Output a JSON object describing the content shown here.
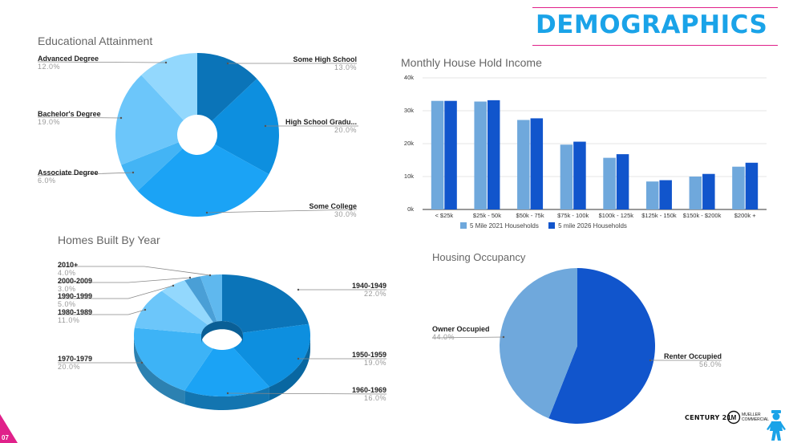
{
  "header": {
    "title": "DEMOGRAPHICS"
  },
  "page_number": "07",
  "logos": {
    "century21": "CENTURY 21",
    "mueller": "MUELLER COMMERCIAL"
  },
  "colors": {
    "accent_pink": "#e0218a",
    "accent_blue": "#1aa3e8",
    "series_2021": "#6fa8dc",
    "series_2026": "#1155cc"
  },
  "chart_data": [
    {
      "id": "education",
      "type": "pie",
      "title": "Educational Attainment",
      "donut": true,
      "slices": [
        {
          "label": "Some High School",
          "value": 13.0,
          "display": "13.0%",
          "color": "#0b74b8"
        },
        {
          "label": "High School Gradu...",
          "value": 20.0,
          "display": "20.0%",
          "color": "#0d8fdf"
        },
        {
          "label": "Some College",
          "value": 30.0,
          "display": "30.0%",
          "color": "#1ba3f5"
        },
        {
          "label": "Associate Degree",
          "value": 6.0,
          "display": "6.0%",
          "color": "#43b4f5"
        },
        {
          "label": "Bachelor's Degree",
          "value": 19.0,
          "display": "19.0%",
          "color": "#6cc6fa"
        },
        {
          "label": "Advanced Degree",
          "value": 12.0,
          "display": "12.0%",
          "color": "#93d8fd"
        }
      ]
    },
    {
      "id": "income",
      "type": "bar",
      "title": "Monthly House Hold Income",
      "categories": [
        "< $25k",
        "$25k - 50k",
        "$50k - 75k",
        "$75k - 100k",
        "$100k - 125k",
        "$125k - 150k",
        "$150k - $200k",
        "$200k +"
      ],
      "series": [
        {
          "name": "5 Mile 2021 Households",
          "color": "#6fa8dc",
          "values": [
            33000,
            32800,
            27200,
            19700,
            15700,
            8500,
            10000,
            13000
          ]
        },
        {
          "name": "5 mile 2026 Households",
          "color": "#1155cc",
          "values": [
            33000,
            33200,
            27700,
            20600,
            16800,
            8900,
            10800,
            14200
          ]
        }
      ],
      "ylim": [
        0,
        40000
      ],
      "yticks": [
        "0k",
        "10k",
        "20k",
        "30k",
        "40k"
      ],
      "legend": "bottom",
      "grid": true
    },
    {
      "id": "homes_built",
      "type": "pie",
      "title": "Homes Built By Year",
      "donut": true,
      "three_d": true,
      "slices": [
        {
          "label": "1940-1949",
          "value": 22.0,
          "display": "22.0%",
          "color": "#0b74b8"
        },
        {
          "label": "1950-1959",
          "value": 19.0,
          "display": "19.0%",
          "color": "#0d8fdf"
        },
        {
          "label": "1960-1969",
          "value": 16.0,
          "display": "16.0%",
          "color": "#1ba3f5"
        },
        {
          "label": "1970-1979",
          "value": 20.0,
          "display": "20.0%",
          "color": "#3db3f6"
        },
        {
          "label": "1980-1989",
          "value": 11.0,
          "display": "11.0%",
          "color": "#6cc6fa"
        },
        {
          "label": "1990-1999",
          "value": 5.0,
          "display": "5.0%",
          "color": "#93d8fd"
        },
        {
          "label": "2000-2009",
          "value": 3.0,
          "display": "3.0%",
          "color": "#4a9fd6"
        },
        {
          "label": "2010+",
          "value": 4.0,
          "display": "4.0%",
          "color": "#5fb8ee"
        }
      ]
    },
    {
      "id": "occupancy",
      "type": "pie",
      "title": "Housing Occupancy",
      "slices": [
        {
          "label": "Renter Occupied",
          "value": 56.0,
          "display": "56.0%",
          "color": "#1155cc"
        },
        {
          "label": "Owner Occupied",
          "value": 44.0,
          "display": "44.0%",
          "color": "#6fa8dc"
        }
      ]
    }
  ]
}
